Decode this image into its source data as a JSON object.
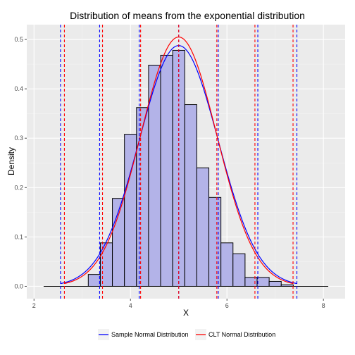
{
  "chart_data": {
    "type": "bar",
    "title": "Distribution of means from the exponential distribution",
    "xlabel": "X",
    "ylabel": "Density",
    "xlim": [
      1.85,
      8.45
    ],
    "ylim": [
      -0.025,
      0.53
    ],
    "x_ticks": [
      2,
      4,
      6,
      8
    ],
    "y_ticks": [
      0.0,
      0.1,
      0.2,
      0.3,
      0.4,
      0.5
    ],
    "y_tick_labels": [
      "0.0",
      "0.1",
      "0.2",
      "0.3",
      "0.4",
      "0.5"
    ],
    "grid": true,
    "background_color": "#ebebeb",
    "histogram": {
      "bin_width": 0.25,
      "fill_color": "#b3b3e8",
      "stroke_color": "#000000",
      "bins": [
        {
          "x0": 2.125,
          "x1": 2.375,
          "density": 0.0
        },
        {
          "x0": 2.375,
          "x1": 2.625,
          "density": 0.0
        },
        {
          "x0": 2.625,
          "x1": 2.875,
          "density": 0.0
        },
        {
          "x0": 2.875,
          "x1": 3.125,
          "density": 0.0
        },
        {
          "x0": 3.125,
          "x1": 3.375,
          "density": 0.024
        },
        {
          "x0": 3.375,
          "x1": 3.625,
          "density": 0.088
        },
        {
          "x0": 3.625,
          "x1": 3.875,
          "density": 0.178
        },
        {
          "x0": 3.875,
          "x1": 4.125,
          "density": 0.308
        },
        {
          "x0": 4.125,
          "x1": 4.375,
          "density": 0.362
        },
        {
          "x0": 4.375,
          "x1": 4.625,
          "density": 0.448
        },
        {
          "x0": 4.625,
          "x1": 4.875,
          "density": 0.468
        },
        {
          "x0": 4.875,
          "x1": 5.125,
          "density": 0.478
        },
        {
          "x0": 5.125,
          "x1": 5.375,
          "density": 0.368
        },
        {
          "x0": 5.375,
          "x1": 5.625,
          "density": 0.24
        },
        {
          "x0": 5.625,
          "x1": 5.875,
          "density": 0.18
        },
        {
          "x0": 5.875,
          "x1": 6.125,
          "density": 0.088
        },
        {
          "x0": 6.125,
          "x1": 6.375,
          "density": 0.066
        },
        {
          "x0": 6.375,
          "x1": 6.625,
          "density": 0.018
        },
        {
          "x0": 6.625,
          "x1": 6.875,
          "density": 0.018
        },
        {
          "x0": 6.875,
          "x1": 7.125,
          "density": 0.01
        },
        {
          "x0": 7.125,
          "x1": 7.375,
          "density": 0.003
        }
      ]
    },
    "series": [
      {
        "name": "Sample Normal Distribution",
        "type": "normal_curve",
        "color": "#0000ff",
        "mean": 5.0,
        "sd": 0.818,
        "x_range": [
          2.55,
          7.45
        ],
        "vlines": [
          2.55,
          3.36,
          4.18,
          5.0,
          5.82,
          6.64,
          7.45
        ]
      },
      {
        "name": "CLT Normal Distribution",
        "type": "normal_curve",
        "color": "#ff0000",
        "mean": 5.0,
        "sd": 0.79,
        "x_range": [
          2.63,
          7.37
        ],
        "vlines": [
          2.63,
          3.42,
          4.21,
          5.0,
          5.79,
          6.58,
          7.37
        ]
      }
    ],
    "baseline": {
      "x_range": [
        2.2,
        8.1
      ],
      "y": 0.0,
      "color": "#000000"
    },
    "legend": {
      "position": "bottom"
    }
  }
}
